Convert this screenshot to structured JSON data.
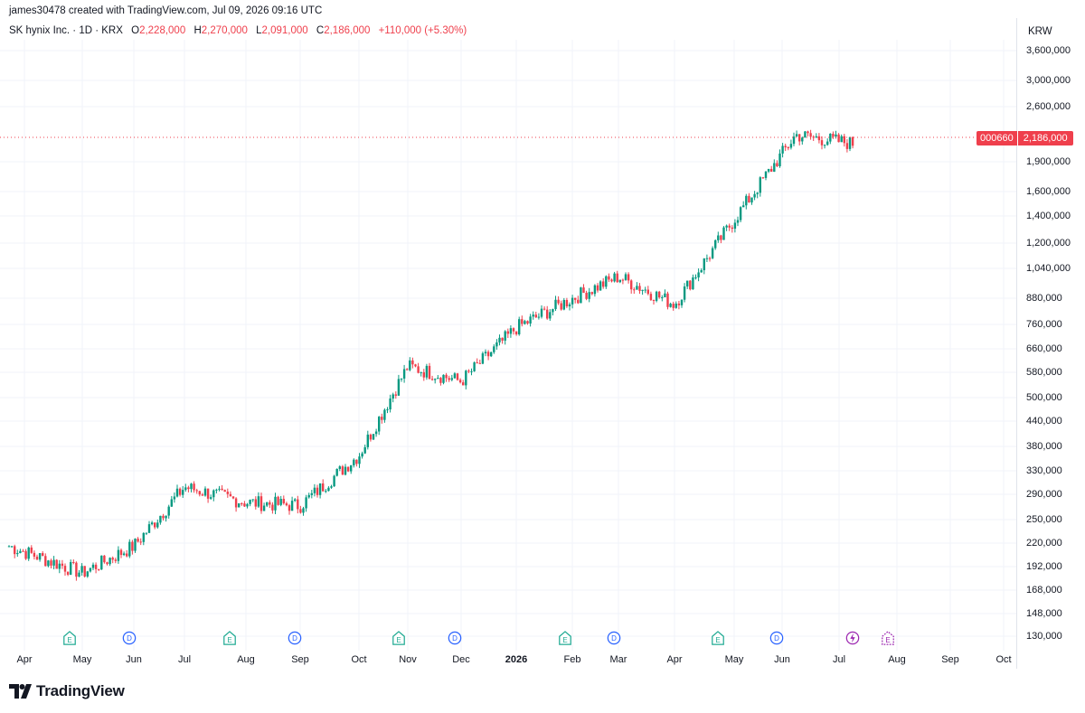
{
  "header": {
    "attribution": "james30478 created with TradingView.com, Jul 09, 2026 09:16 UTC"
  },
  "legend": {
    "symbol": "SK hynix Inc. · 1D · KRX",
    "open_label": "O",
    "open": "2,228,000",
    "high_label": "H",
    "high": "2,270,000",
    "low_label": "L",
    "low": "2,091,000",
    "close_label": "C",
    "close": "2,186,000",
    "change": "+110,000 (+5.30%)"
  },
  "currency": "KRW",
  "price_tag": {
    "ticker": "000660",
    "price": "2,186,000"
  },
  "colors": {
    "up": "#089981",
    "down": "#ef3f4c",
    "grid": "#f0f3fa",
    "earnings": "#22ab94",
    "dividend": "#2962ff",
    "split": "#9c27b0"
  },
  "y_axis": [
    "3,600,000",
    "3,000,000",
    "2,600,000",
    "1,900,000",
    "1,600,000",
    "1,400,000",
    "1,200,000",
    "1,040,000",
    "880,000",
    "760,000",
    "660,000",
    "580,000",
    "500,000",
    "440,000",
    "380,000",
    "330,000",
    "290,000",
    "250,000",
    "220,000",
    "192,000",
    "168,000",
    "148,000",
    "130,000"
  ],
  "x_axis": [
    {
      "label": "Apr",
      "year": false
    },
    {
      "label": "May",
      "year": false
    },
    {
      "label": "Jun",
      "year": false
    },
    {
      "label": "Jul",
      "year": false
    },
    {
      "label": "Aug",
      "year": false
    },
    {
      "label": "Sep",
      "year": false
    },
    {
      "label": "Oct",
      "year": false
    },
    {
      "label": "Nov",
      "year": false
    },
    {
      "label": "Dec",
      "year": false
    },
    {
      "label": "2026",
      "year": true
    },
    {
      "label": "Feb",
      "year": false
    },
    {
      "label": "Mar",
      "year": false
    },
    {
      "label": "Apr",
      "year": false
    },
    {
      "label": "May",
      "year": false
    },
    {
      "label": "Jun",
      "year": false
    },
    {
      "label": "Jul",
      "year": false
    },
    {
      "label": "Aug",
      "year": false
    },
    {
      "label": "Sep",
      "year": false
    },
    {
      "label": "Oct",
      "year": false
    }
  ],
  "events": [
    {
      "type": "earnings",
      "letter": "E"
    },
    {
      "type": "dividend",
      "letter": "D"
    },
    {
      "type": "earnings",
      "letter": "E"
    },
    {
      "type": "dividend",
      "letter": "D"
    },
    {
      "type": "earnings",
      "letter": "E"
    },
    {
      "type": "dividend",
      "letter": "D"
    },
    {
      "type": "earnings",
      "letter": "E"
    },
    {
      "type": "dividend",
      "letter": "D"
    },
    {
      "type": "earnings",
      "letter": "E"
    },
    {
      "type": "dividend",
      "letter": "D"
    },
    {
      "type": "split",
      "letter": ""
    },
    {
      "type": "earnings-upcoming",
      "letter": "E"
    }
  ],
  "brand": {
    "name": "TradingView"
  },
  "chart_data": {
    "type": "candlestick",
    "scale": "log",
    "ylim": [
      120000,
      3900000
    ],
    "anchor_dates": [
      "2025-04",
      "2025-05",
      "2025-06",
      "2025-07",
      "2025-08",
      "2025-09",
      "2025-10",
      "2025-11",
      "2025-12",
      "2026-01",
      "2026-02",
      "2026-03",
      "2026-04",
      "2026-05",
      "2026-06",
      "2026-07"
    ],
    "anchor_close": [
      205000,
      175000,
      205000,
      290000,
      265000,
      260000,
      350000,
      590000,
      540000,
      740000,
      880000,
      1000000,
      850000,
      1400000,
      2300000,
      2186000
    ]
  }
}
